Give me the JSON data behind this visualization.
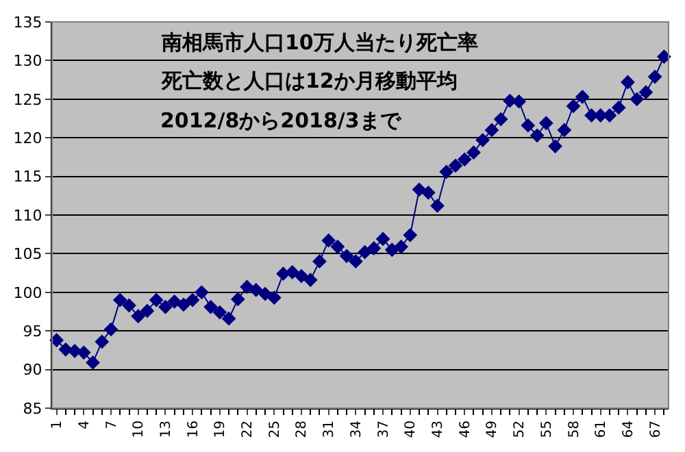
{
  "chart_data": {
    "type": "line",
    "title": "南相馬市人口10万人当たり死亡率",
    "annotations": [
      "死亡数と人口は12か月移動平均",
      "2012/8から2018/3まで"
    ],
    "categories": [
      "1",
      null,
      null,
      "4",
      null,
      null,
      "7",
      null,
      null,
      "10",
      null,
      null,
      "13",
      null,
      null,
      "16",
      null,
      null,
      "19",
      null,
      null,
      "22",
      null,
      null,
      "25",
      null,
      null,
      "28",
      null,
      null,
      "31",
      null,
      null,
      "34",
      null,
      null,
      "37",
      null,
      null,
      "40",
      null,
      null,
      "43",
      null,
      null,
      "46",
      null,
      null,
      "49",
      null,
      null,
      "52",
      null,
      null,
      "55",
      null,
      null,
      "58",
      null,
      null,
      "61",
      null,
      null,
      "64",
      null,
      null,
      "67",
      null
    ],
    "series": [
      {
        "color": "#000080",
        "values": [
          93.8,
          92.6,
          92.4,
          92.2,
          90.9,
          93.6,
          95.2,
          99.0,
          98.3,
          96.9,
          97.6,
          99.0,
          98.1,
          98.8,
          98.4,
          99.0,
          100.0,
          98.1,
          97.4,
          96.6,
          99.1,
          100.7,
          100.3,
          99.8,
          99.3,
          102.4,
          102.6,
          102.1,
          101.6,
          104.0,
          106.7,
          105.9,
          104.7,
          104.0,
          105.2,
          105.7,
          106.9,
          105.5,
          105.9,
          107.4,
          113.3,
          112.9,
          111.2,
          115.6,
          116.4,
          117.2,
          118.1,
          119.7,
          121.0,
          122.4,
          124.8,
          124.7,
          121.6,
          120.3,
          121.9,
          118.9,
          121.0,
          124.1,
          125.3,
          122.9,
          122.9,
          122.9,
          123.9,
          127.2,
          125.0,
          125.9,
          127.9,
          130.5
        ]
      }
    ],
    "ylim": [
      85,
      135
    ],
    "yticks": [
      85,
      90,
      95,
      100,
      105,
      110,
      115,
      120,
      125,
      130,
      135
    ],
    "grid": "y",
    "marker": "diamond",
    "line_style": "solid"
  }
}
